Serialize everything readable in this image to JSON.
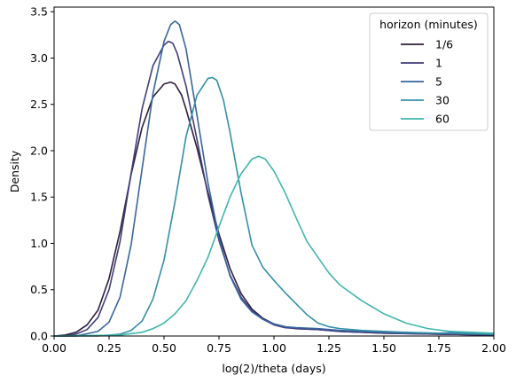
{
  "chart_data": {
    "type": "line",
    "xlabel": "log(2)/theta (days)",
    "ylabel": "Density",
    "xlim": [
      0,
      2
    ],
    "ylim": [
      0,
      3.55
    ],
    "xticks": [
      "0.00",
      "0.25",
      "0.50",
      "0.75",
      "1.00",
      "1.25",
      "1.50",
      "1.75",
      "2.00"
    ],
    "yticks": [
      "0.0",
      "0.5",
      "1.0",
      "1.5",
      "2.0",
      "2.5",
      "3.0",
      "3.5"
    ],
    "grid": false,
    "legend": {
      "title": "horizon (minutes)",
      "placement": "top-right"
    },
    "series": [
      {
        "name": "1/6",
        "color": "#2e1e3b",
        "x": [
          0,
          0.05,
          0.1,
          0.15,
          0.2,
          0.25,
          0.3,
          0.35,
          0.4,
          0.45,
          0.5,
          0.53,
          0.55,
          0.58,
          0.6,
          0.65,
          0.7,
          0.75,
          0.8,
          0.85,
          0.9,
          0.95,
          1.0,
          1.05,
          1.1,
          1.2,
          1.3,
          1.5,
          1.75,
          2.0
        ],
        "y": [
          0.0,
          0.01,
          0.04,
          0.12,
          0.28,
          0.62,
          1.13,
          1.74,
          2.25,
          2.58,
          2.72,
          2.74,
          2.72,
          2.6,
          2.45,
          2.03,
          1.55,
          1.1,
          0.73,
          0.46,
          0.29,
          0.19,
          0.13,
          0.1,
          0.08,
          0.07,
          0.05,
          0.03,
          0.02,
          0.01
        ]
      },
      {
        "name": "1",
        "color": "#413d7b",
        "x": [
          0,
          0.05,
          0.1,
          0.15,
          0.2,
          0.25,
          0.3,
          0.35,
          0.4,
          0.45,
          0.5,
          0.52,
          0.54,
          0.56,
          0.6,
          0.65,
          0.7,
          0.75,
          0.8,
          0.85,
          0.9,
          0.95,
          1.0,
          1.05,
          1.1,
          1.2,
          1.3,
          1.5,
          1.75,
          2.0
        ],
        "y": [
          0.0,
          0.0,
          0.02,
          0.07,
          0.2,
          0.5,
          1.02,
          1.75,
          2.45,
          2.92,
          3.14,
          3.18,
          3.16,
          3.05,
          2.7,
          2.12,
          1.52,
          1.03,
          0.66,
          0.42,
          0.27,
          0.18,
          0.12,
          0.09,
          0.08,
          0.07,
          0.05,
          0.03,
          0.02,
          0.01
        ]
      },
      {
        "name": "5",
        "color": "#37659e",
        "x": [
          0,
          0.1,
          0.2,
          0.25,
          0.3,
          0.35,
          0.4,
          0.45,
          0.5,
          0.53,
          0.55,
          0.57,
          0.6,
          0.65,
          0.7,
          0.75,
          0.8,
          0.85,
          0.9,
          0.95,
          1.0,
          1.05,
          1.1,
          1.2,
          1.3,
          1.4,
          1.5,
          1.6,
          1.75,
          1.85,
          1.92,
          2.0
        ],
        "y": [
          0.0,
          0.0,
          0.05,
          0.15,
          0.42,
          0.98,
          1.8,
          2.62,
          3.18,
          3.36,
          3.4,
          3.36,
          3.1,
          2.38,
          1.65,
          1.06,
          0.65,
          0.4,
          0.26,
          0.18,
          0.13,
          0.1,
          0.09,
          0.08,
          0.06,
          0.05,
          0.04,
          0.03,
          0.03,
          0.04,
          0.03,
          0.02
        ]
      },
      {
        "name": "30",
        "color": "#348fa7",
        "x": [
          0,
          0.2,
          0.3,
          0.35,
          0.4,
          0.45,
          0.5,
          0.55,
          0.6,
          0.65,
          0.7,
          0.72,
          0.74,
          0.77,
          0.8,
          0.85,
          0.9,
          0.95,
          1.0,
          1.05,
          1.1,
          1.15,
          1.2,
          1.25,
          1.3,
          1.4,
          1.5,
          1.6,
          1.75,
          2.0
        ],
        "y": [
          0.0,
          0.0,
          0.02,
          0.06,
          0.16,
          0.4,
          0.82,
          1.45,
          2.15,
          2.6,
          2.78,
          2.79,
          2.76,
          2.55,
          2.2,
          1.55,
          0.98,
          0.74,
          0.6,
          0.47,
          0.35,
          0.23,
          0.14,
          0.1,
          0.08,
          0.06,
          0.05,
          0.04,
          0.03,
          0.02
        ]
      },
      {
        "name": "60",
        "color": "#40b7ad",
        "x": [
          0,
          0.3,
          0.4,
          0.45,
          0.5,
          0.55,
          0.6,
          0.65,
          0.7,
          0.75,
          0.8,
          0.85,
          0.9,
          0.93,
          0.96,
          1.0,
          1.05,
          1.1,
          1.15,
          1.2,
          1.25,
          1.3,
          1.4,
          1.5,
          1.6,
          1.7,
          1.8,
          1.9,
          2.0
        ],
        "y": [
          0.0,
          0.01,
          0.04,
          0.08,
          0.14,
          0.24,
          0.38,
          0.6,
          0.85,
          1.18,
          1.5,
          1.75,
          1.91,
          1.94,
          1.91,
          1.78,
          1.55,
          1.28,
          1.02,
          0.85,
          0.68,
          0.55,
          0.38,
          0.24,
          0.14,
          0.08,
          0.05,
          0.04,
          0.03
        ]
      }
    ]
  }
}
